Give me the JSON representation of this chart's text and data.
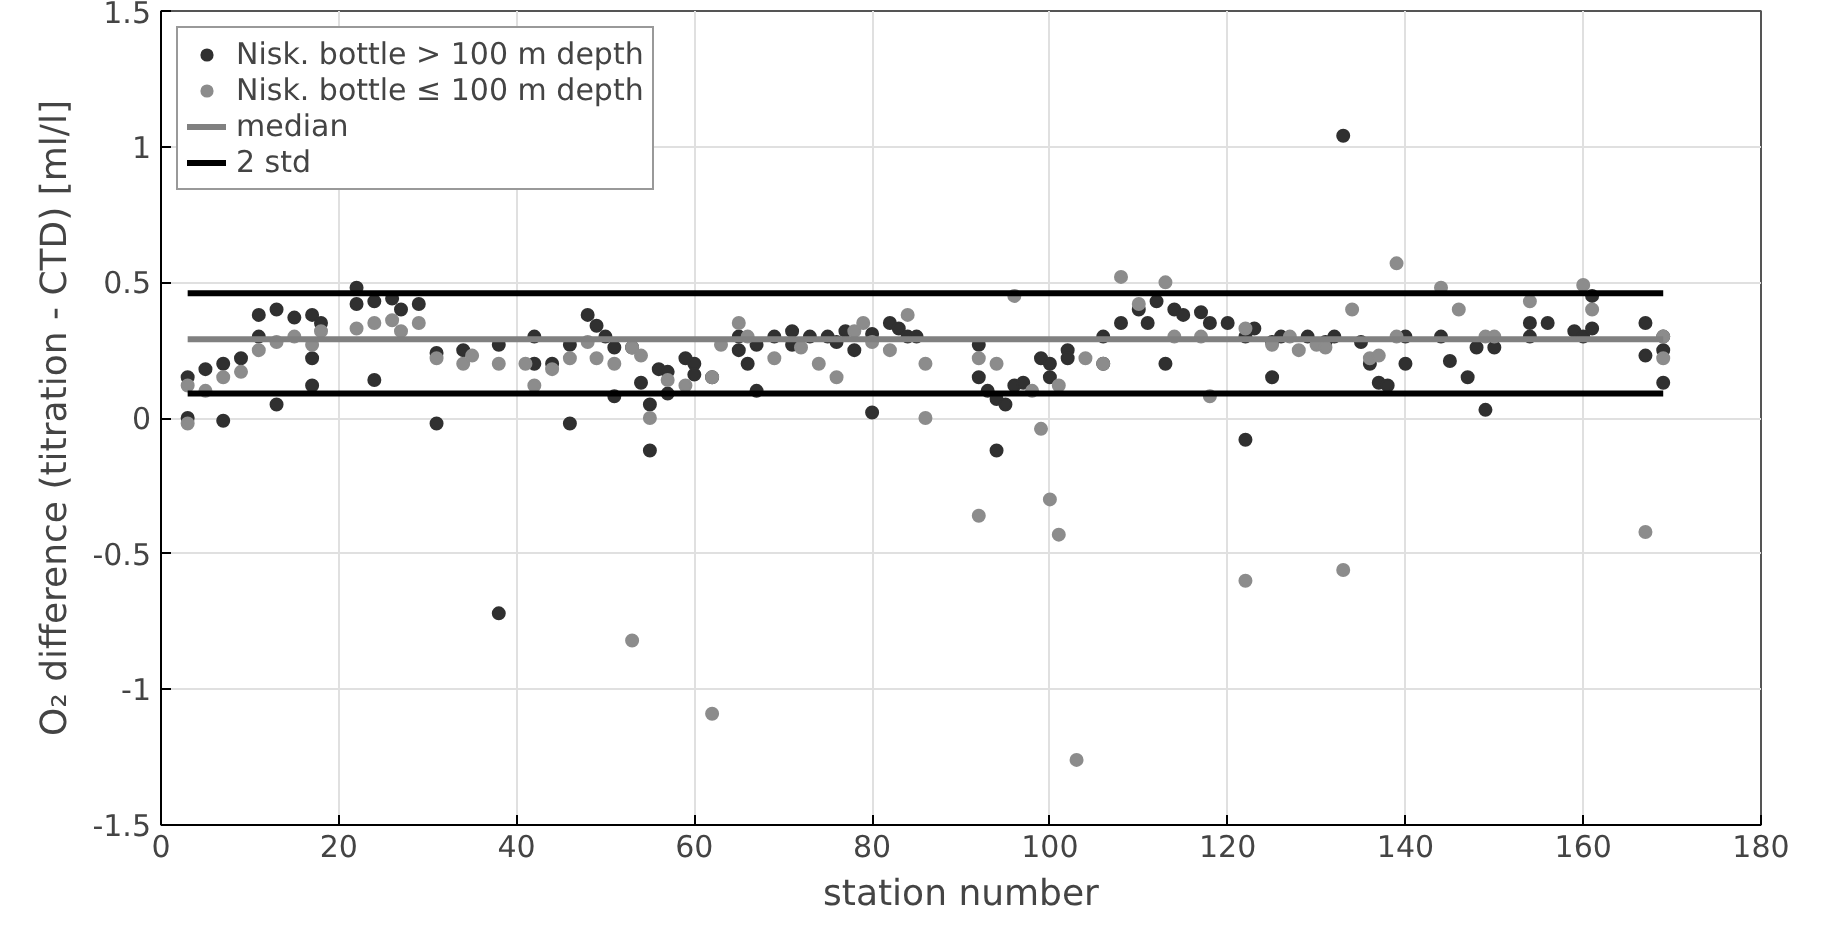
{
  "chart_data": {
    "type": "scatter",
    "xlabel": "station number",
    "ylabel": "O₂ difference (titration - CTD) [ml/l]",
    "xlim": [
      0,
      180
    ],
    "xticks": [
      0,
      20,
      40,
      60,
      80,
      100,
      120,
      140,
      160,
      180
    ],
    "ylim": [
      -1.5,
      1.5
    ],
    "yticks": [
      -1.5,
      -1,
      -0.5,
      0,
      0.5,
      1,
      1.5
    ],
    "grid": true,
    "legend": "top left",
    "marker": "circle",
    "series": [
      {
        "name": "Nisk. bottle > 100 m depth",
        "color": "#303030",
        "x": [
          3,
          3,
          5,
          7,
          7,
          9,
          11,
          11,
          13,
          13,
          15,
          17,
          17,
          17,
          18,
          22,
          22,
          24,
          24,
          26,
          27,
          29,
          31,
          31,
          34,
          38,
          38,
          42,
          42,
          44,
          46,
          46,
          48,
          49,
          50,
          51,
          51,
          53,
          54,
          55,
          55,
          56,
          57,
          57,
          59,
          60,
          60,
          62,
          65,
          65,
          66,
          67,
          67,
          69,
          71,
          71,
          73,
          75,
          76,
          77,
          78,
          80,
          80,
          82,
          83,
          84,
          85,
          92,
          92,
          93,
          94,
          94,
          95,
          96,
          97,
          99,
          100,
          100,
          102,
          102,
          106,
          106,
          108,
          110,
          111,
          112,
          113,
          114,
          115,
          117,
          118,
          120,
          122,
          122,
          123,
          125,
          125,
          126,
          129,
          131,
          132,
          133,
          135,
          136,
          137,
          138,
          140,
          140,
          144,
          145,
          147,
          148,
          149,
          150,
          154,
          154,
          156,
          159,
          160,
          161,
          161,
          167,
          167,
          169,
          169,
          169
        ],
        "values": [
          0.15,
          0.0,
          0.18,
          -0.01,
          0.2,
          0.22,
          0.3,
          0.38,
          0.4,
          0.05,
          0.37,
          0.38,
          0.22,
          0.12,
          0.35,
          0.48,
          0.42,
          0.43,
          0.14,
          0.44,
          0.4,
          0.42,
          0.24,
          -0.02,
          0.25,
          0.27,
          -0.72,
          0.3,
          0.2,
          0.2,
          0.27,
          -0.02,
          0.38,
          0.34,
          0.3,
          0.26,
          0.08,
          0.26,
          0.13,
          0.05,
          -0.12,
          0.18,
          0.17,
          0.09,
          0.22,
          0.2,
          0.16,
          0.15,
          0.3,
          0.25,
          0.2,
          0.27,
          0.1,
          0.3,
          0.32,
          0.27,
          0.3,
          0.3,
          0.28,
          0.32,
          0.25,
          0.02,
          0.31,
          0.35,
          0.33,
          0.3,
          0.3,
          0.27,
          0.15,
          0.1,
          0.07,
          -0.12,
          0.05,
          0.12,
          0.13,
          0.22,
          0.2,
          0.15,
          0.25,
          0.22,
          0.3,
          0.2,
          0.35,
          0.4,
          0.35,
          0.43,
          0.2,
          0.4,
          0.38,
          0.39,
          0.35,
          0.35,
          -0.08,
          0.3,
          0.33,
          0.28,
          0.15,
          0.3,
          0.3,
          0.28,
          0.3,
          1.04,
          0.28,
          0.2,
          0.13,
          0.12,
          0.2,
          0.3,
          0.3,
          0.21,
          0.15,
          0.26,
          0.03,
          0.26,
          0.3,
          0.35,
          0.35,
          0.32,
          0.3,
          0.45,
          0.33,
          0.35,
          0.23,
          0.3,
          0.25,
          0.13
        ]
      },
      {
        "name": "Nisk. bottle ≤ 100 m depth",
        "color": "#8c8c8c",
        "x": [
          3,
          3,
          5,
          7,
          9,
          11,
          13,
          15,
          17,
          18,
          22,
          24,
          26,
          27,
          29,
          31,
          34,
          35,
          38,
          41,
          42,
          44,
          46,
          48,
          49,
          51,
          53,
          53,
          54,
          55,
          57,
          59,
          62,
          62,
          63,
          65,
          66,
          69,
          72,
          74,
          76,
          78,
          79,
          80,
          82,
          84,
          86,
          86,
          92,
          92,
          94,
          96,
          98,
          99,
          100,
          101,
          101,
          103,
          104,
          106,
          108,
          110,
          113,
          114,
          117,
          118,
          122,
          122,
          125,
          127,
          128,
          130,
          131,
          133,
          134,
          136,
          137,
          139,
          139,
          144,
          146,
          149,
          150,
          154,
          160,
          161,
          167,
          169,
          169
        ],
        "values": [
          0.12,
          -0.02,
          0.1,
          0.15,
          0.17,
          0.25,
          0.28,
          0.3,
          0.27,
          0.32,
          0.33,
          0.35,
          0.36,
          0.32,
          0.35,
          0.22,
          0.2,
          0.23,
          0.2,
          0.2,
          0.12,
          0.18,
          0.22,
          0.28,
          0.22,
          0.2,
          -0.82,
          0.26,
          0.23,
          0.0,
          0.14,
          0.12,
          -1.09,
          0.15,
          0.27,
          0.35,
          0.3,
          0.22,
          0.26,
          0.2,
          0.15,
          0.32,
          0.35,
          0.28,
          0.25,
          0.38,
          0.0,
          0.2,
          -0.36,
          0.22,
          0.2,
          0.45,
          0.1,
          -0.04,
          -0.3,
          -0.43,
          0.12,
          -1.26,
          0.22,
          0.2,
          0.52,
          0.42,
          0.5,
          0.3,
          0.3,
          0.08,
          -0.6,
          0.33,
          0.27,
          0.3,
          0.25,
          0.27,
          0.26,
          -0.56,
          0.4,
          0.22,
          0.23,
          0.57,
          0.3,
          0.48,
          0.4,
          0.3,
          0.3,
          0.43,
          0.49,
          0.4,
          -0.42,
          0.3,
          0.22
        ]
      },
      {
        "name": "median",
        "type": "line",
        "marker": "none",
        "color": "#808080",
        "x": [
          3,
          169
        ],
        "values": [
          0.29,
          0.29
        ]
      },
      {
        "name": "2 std",
        "type": "line",
        "marker": "none",
        "color": "#000000",
        "x": [
          3,
          169
        ],
        "values": [
          0.46,
          0.46
        ]
      },
      {
        "type": "line",
        "marker": "none",
        "color": "#000000",
        "x": [
          3,
          169
        ],
        "values": [
          0.09,
          0.09
        ]
      }
    ]
  }
}
